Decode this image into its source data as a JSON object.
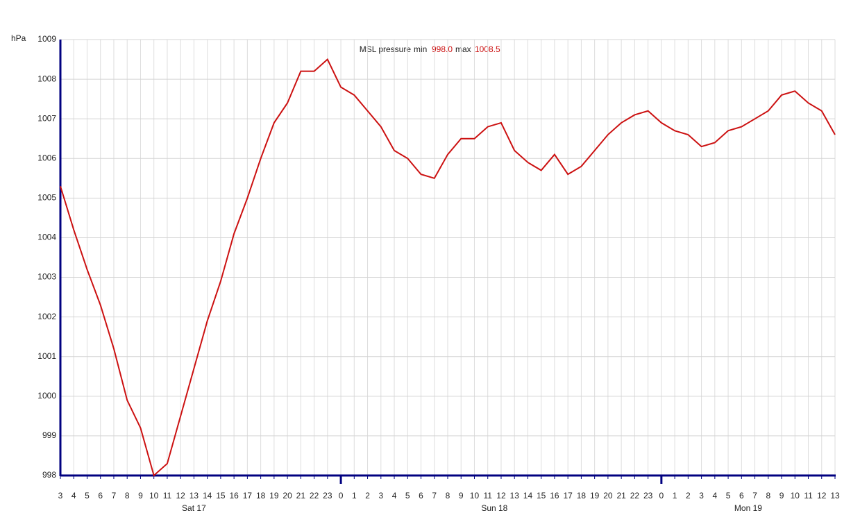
{
  "chart_data": {
    "type": "line",
    "title": "MSL pressure",
    "min_label": "min",
    "min_value": "998.0",
    "max_label": "max",
    "max_value": "1008.5",
    "y_unit": "hPa",
    "categories": [
      "3",
      "4",
      "5",
      "6",
      "7",
      "8",
      "9",
      "10",
      "11",
      "12",
      "13",
      "14",
      "15",
      "16",
      "17",
      "18",
      "19",
      "20",
      "21",
      "22",
      "23",
      "0",
      "1",
      "2",
      "3",
      "4",
      "5",
      "6",
      "7",
      "8",
      "9",
      "10",
      "11",
      "12",
      "13",
      "14",
      "15",
      "16",
      "17",
      "18",
      "19",
      "20",
      "21",
      "22",
      "23",
      "0",
      "1",
      "2",
      "3",
      "4",
      "5",
      "6",
      "7",
      "8",
      "9",
      "10",
      "11",
      "12",
      "13"
    ],
    "days": [
      "Sat 17",
      "Sun 18",
      "Mon 19"
    ],
    "series": [
      {
        "name": "MSL pressure",
        "color": "#cc1111",
        "values": [
          1005.3,
          1004.2,
          1003.2,
          1002.3,
          1001.2,
          999.9,
          999.2,
          998.0,
          998.3,
          999.5,
          1000.7,
          1001.9,
          1002.9,
          1004.1,
          1005.0,
          1006.0,
          1006.9,
          1007.4,
          1008.2,
          1008.2,
          1008.5,
          1007.8,
          1007.6,
          1007.2,
          1006.8,
          1006.2,
          1006.0,
          1005.6,
          1005.5,
          1006.1,
          1006.5,
          1006.5,
          1006.8,
          1006.9,
          1006.2,
          1005.9,
          1005.7,
          1006.1,
          1005.6,
          1005.8,
          1006.2,
          1006.6,
          1006.9,
          1007.1,
          1007.2,
          1006.9,
          1006.7,
          1006.6,
          1006.3,
          1006.4,
          1006.7,
          1006.8,
          1007.0,
          1007.2,
          1007.6,
          1007.7,
          1007.4,
          1007.2,
          1006.6
        ]
      }
    ],
    "ylim": [
      998,
      1009
    ],
    "yticks": [
      998,
      999,
      1000,
      1001,
      1002,
      1003,
      1004,
      1005,
      1006,
      1007,
      1008,
      1009
    ],
    "grid": true,
    "axis_color": "#000080"
  }
}
